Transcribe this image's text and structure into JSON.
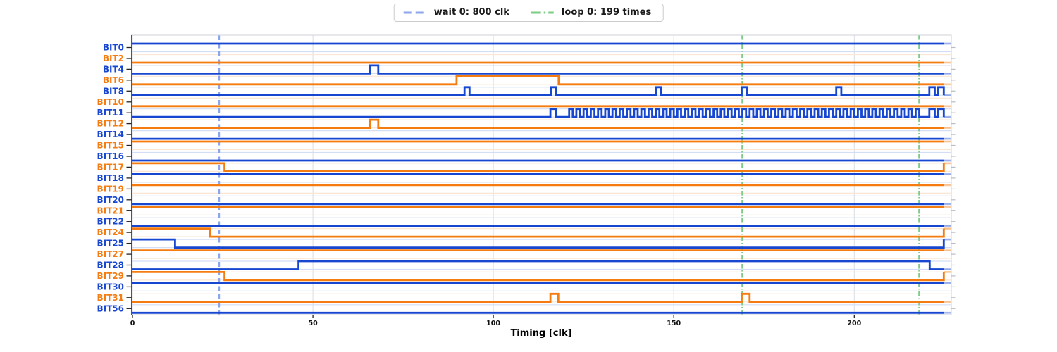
{
  "legend": {
    "items": [
      {
        "label": "wait 0: 800 clk",
        "color": "#8ba6ea",
        "style": "dashed"
      },
      {
        "label": "loop 0: 199 times",
        "color": "#7ccc86",
        "style": "dashdot"
      }
    ]
  },
  "chart_data": {
    "type": "line",
    "subtype": "digital-timing-waveform",
    "title": "",
    "xlabel": "Timing [clk]",
    "x_ticks": [
      0,
      50,
      100,
      150,
      200
    ],
    "x_range": [
      0,
      227
    ],
    "data_end": 224.8,
    "fade_end": 226.8,
    "grid": true,
    "legend_position": "top-center",
    "markers": {
      "wait_lines": {
        "label": "wait 0: 800 clk",
        "x": [
          24
        ],
        "color": "#8ba6ea",
        "style": "dashed"
      },
      "loop_lines": {
        "label": "loop 0: 199 times",
        "x": [
          169,
          218
        ],
        "color": "#7ccc86",
        "style": "dashdot"
      }
    },
    "colors": {
      "blue": "#1747d1",
      "orange": "#f57c11",
      "blue_faint": "#d3def5",
      "orange_faint": "#fae6d2",
      "grid_vertical": "#d9dde6",
      "tick": "#222222",
      "frame": "#cdd1da"
    },
    "signals": [
      {
        "label": "BIT0",
        "color": "blue",
        "high_intervals": [
          [
            0,
            226.8
          ]
        ]
      },
      {
        "label": "BIT2",
        "color": "orange",
        "high_intervals": []
      },
      {
        "label": "BIT4",
        "color": "blue",
        "high_intervals": [
          [
            65.8,
            68.1
          ]
        ]
      },
      {
        "label": "BIT6",
        "color": "orange",
        "high_intervals": [
          [
            89.8,
            118.1
          ]
        ]
      },
      {
        "label": "BIT8",
        "color": "blue",
        "high_intervals": [
          [
            92,
            93.4
          ],
          [
            116,
            117.4
          ],
          [
            145,
            146.4
          ],
          [
            168.8,
            170.2
          ],
          [
            195,
            196.4
          ],
          [
            220.8,
            222.3
          ],
          [
            223.2,
            224.8
          ]
        ]
      },
      {
        "label": "BIT10",
        "color": "orange",
        "high_intervals": []
      },
      {
        "label": "BIT11",
        "color": "blue",
        "high_intervals": [
          [
            115.8,
            117.4
          ],
          [
            220.8,
            222.3
          ],
          [
            223.2,
            224.8
          ]
        ],
        "burst": {
          "start": 121,
          "end": 218,
          "period": 2
        }
      },
      {
        "label": "BIT12",
        "color": "orange",
        "high_intervals": [
          [
            65.8,
            68.1
          ]
        ]
      },
      {
        "label": "BIT14",
        "color": "blue",
        "high_intervals": []
      },
      {
        "label": "BIT15",
        "color": "orange",
        "high_intervals": [
          [
            0,
            226.8
          ]
        ]
      },
      {
        "label": "BIT16",
        "color": "blue",
        "high_intervals": []
      },
      {
        "label": "BIT17",
        "color": "orange",
        "high_intervals": [
          [
            0,
            25.5
          ],
          [
            224.8,
            226.8
          ]
        ]
      },
      {
        "label": "BIT18",
        "color": "blue",
        "high_intervals": [
          [
            0,
            226.8
          ]
        ]
      },
      {
        "label": "BIT19",
        "color": "orange",
        "high_intervals": [
          [
            0,
            226.8
          ]
        ]
      },
      {
        "label": "BIT20",
        "color": "blue",
        "high_intervals": []
      },
      {
        "label": "BIT21",
        "color": "orange",
        "high_intervals": [
          [
            0,
            226.8
          ]
        ]
      },
      {
        "label": "BIT22",
        "color": "blue",
        "high_intervals": []
      },
      {
        "label": "BIT24",
        "color": "orange",
        "high_intervals": [
          [
            0,
            21.5
          ],
          [
            224.8,
            226.8
          ]
        ]
      },
      {
        "label": "BIT25",
        "color": "blue",
        "high_intervals": [
          [
            0,
            11.8
          ],
          [
            224.8,
            226.8
          ]
        ]
      },
      {
        "label": "BIT27",
        "color": "orange",
        "high_intervals": [
          [
            0,
            226.8
          ]
        ]
      },
      {
        "label": "BIT28",
        "color": "blue",
        "high_intervals": [
          [
            46,
            220.9
          ]
        ]
      },
      {
        "label": "BIT29",
        "color": "orange",
        "high_intervals": [
          [
            0,
            25.5
          ],
          [
            224.8,
            226.8
          ]
        ]
      },
      {
        "label": "BIT30",
        "color": "blue",
        "high_intervals": [
          [
            0,
            226.8
          ]
        ]
      },
      {
        "label": "BIT31",
        "color": "orange",
        "high_intervals": [
          [
            115.8,
            118
          ],
          [
            168.8,
            171
          ]
        ]
      },
      {
        "label": "BIT56",
        "color": "blue",
        "high_intervals": []
      }
    ]
  }
}
